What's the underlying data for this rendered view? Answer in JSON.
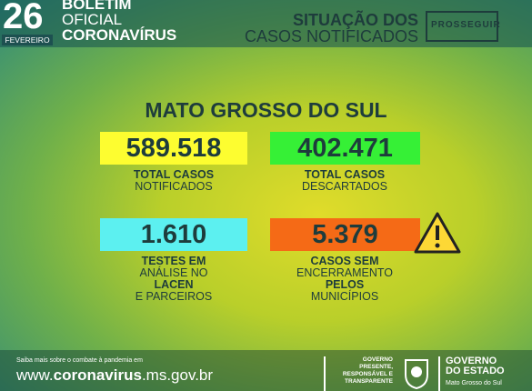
{
  "header": {
    "day": "26",
    "month": "FEVEREIRO",
    "bulletin": [
      "BOLETIM",
      "OFICIAL",
      "CORONAVÍRUS"
    ],
    "situation": [
      "SITUAÇÃO DOS",
      "CASOS NOTIFICADOS"
    ],
    "logo": "PROSSEGUIR"
  },
  "region": "MATO GROSSO DO SUL",
  "cards": [
    {
      "value": "589.518",
      "lines": [
        "TOTAL CASOS",
        "NOTIFICADOS"
      ]
    },
    {
      "value": "402.471",
      "lines": [
        "TOTAL CASOS",
        "DESCARTADOS"
      ]
    },
    {
      "value": "1.610",
      "lines": [
        "TESTES EM",
        "ANÁLISE NO",
        "LACEN",
        "E PARCEIROS"
      ]
    },
    {
      "value": "5.379",
      "lines": [
        "CASOS SEM",
        "ENCERRAMENTO",
        "PELOS",
        "MUNICÍPIOS"
      ]
    }
  ],
  "footer": {
    "note": "Saiba mais sobre o combate à pandemia em",
    "url": [
      "www.",
      "coronavirus",
      ".ms.gov.br"
    ],
    "motto": [
      "GOVERNO",
      "PRESENTE,",
      "RESPONSÁVEL E",
      "TRANSPARENTE"
    ],
    "gov": [
      "GOVERNO",
      "DO ESTADO"
    ],
    "state": "Mato Grosso do Sul"
  }
}
